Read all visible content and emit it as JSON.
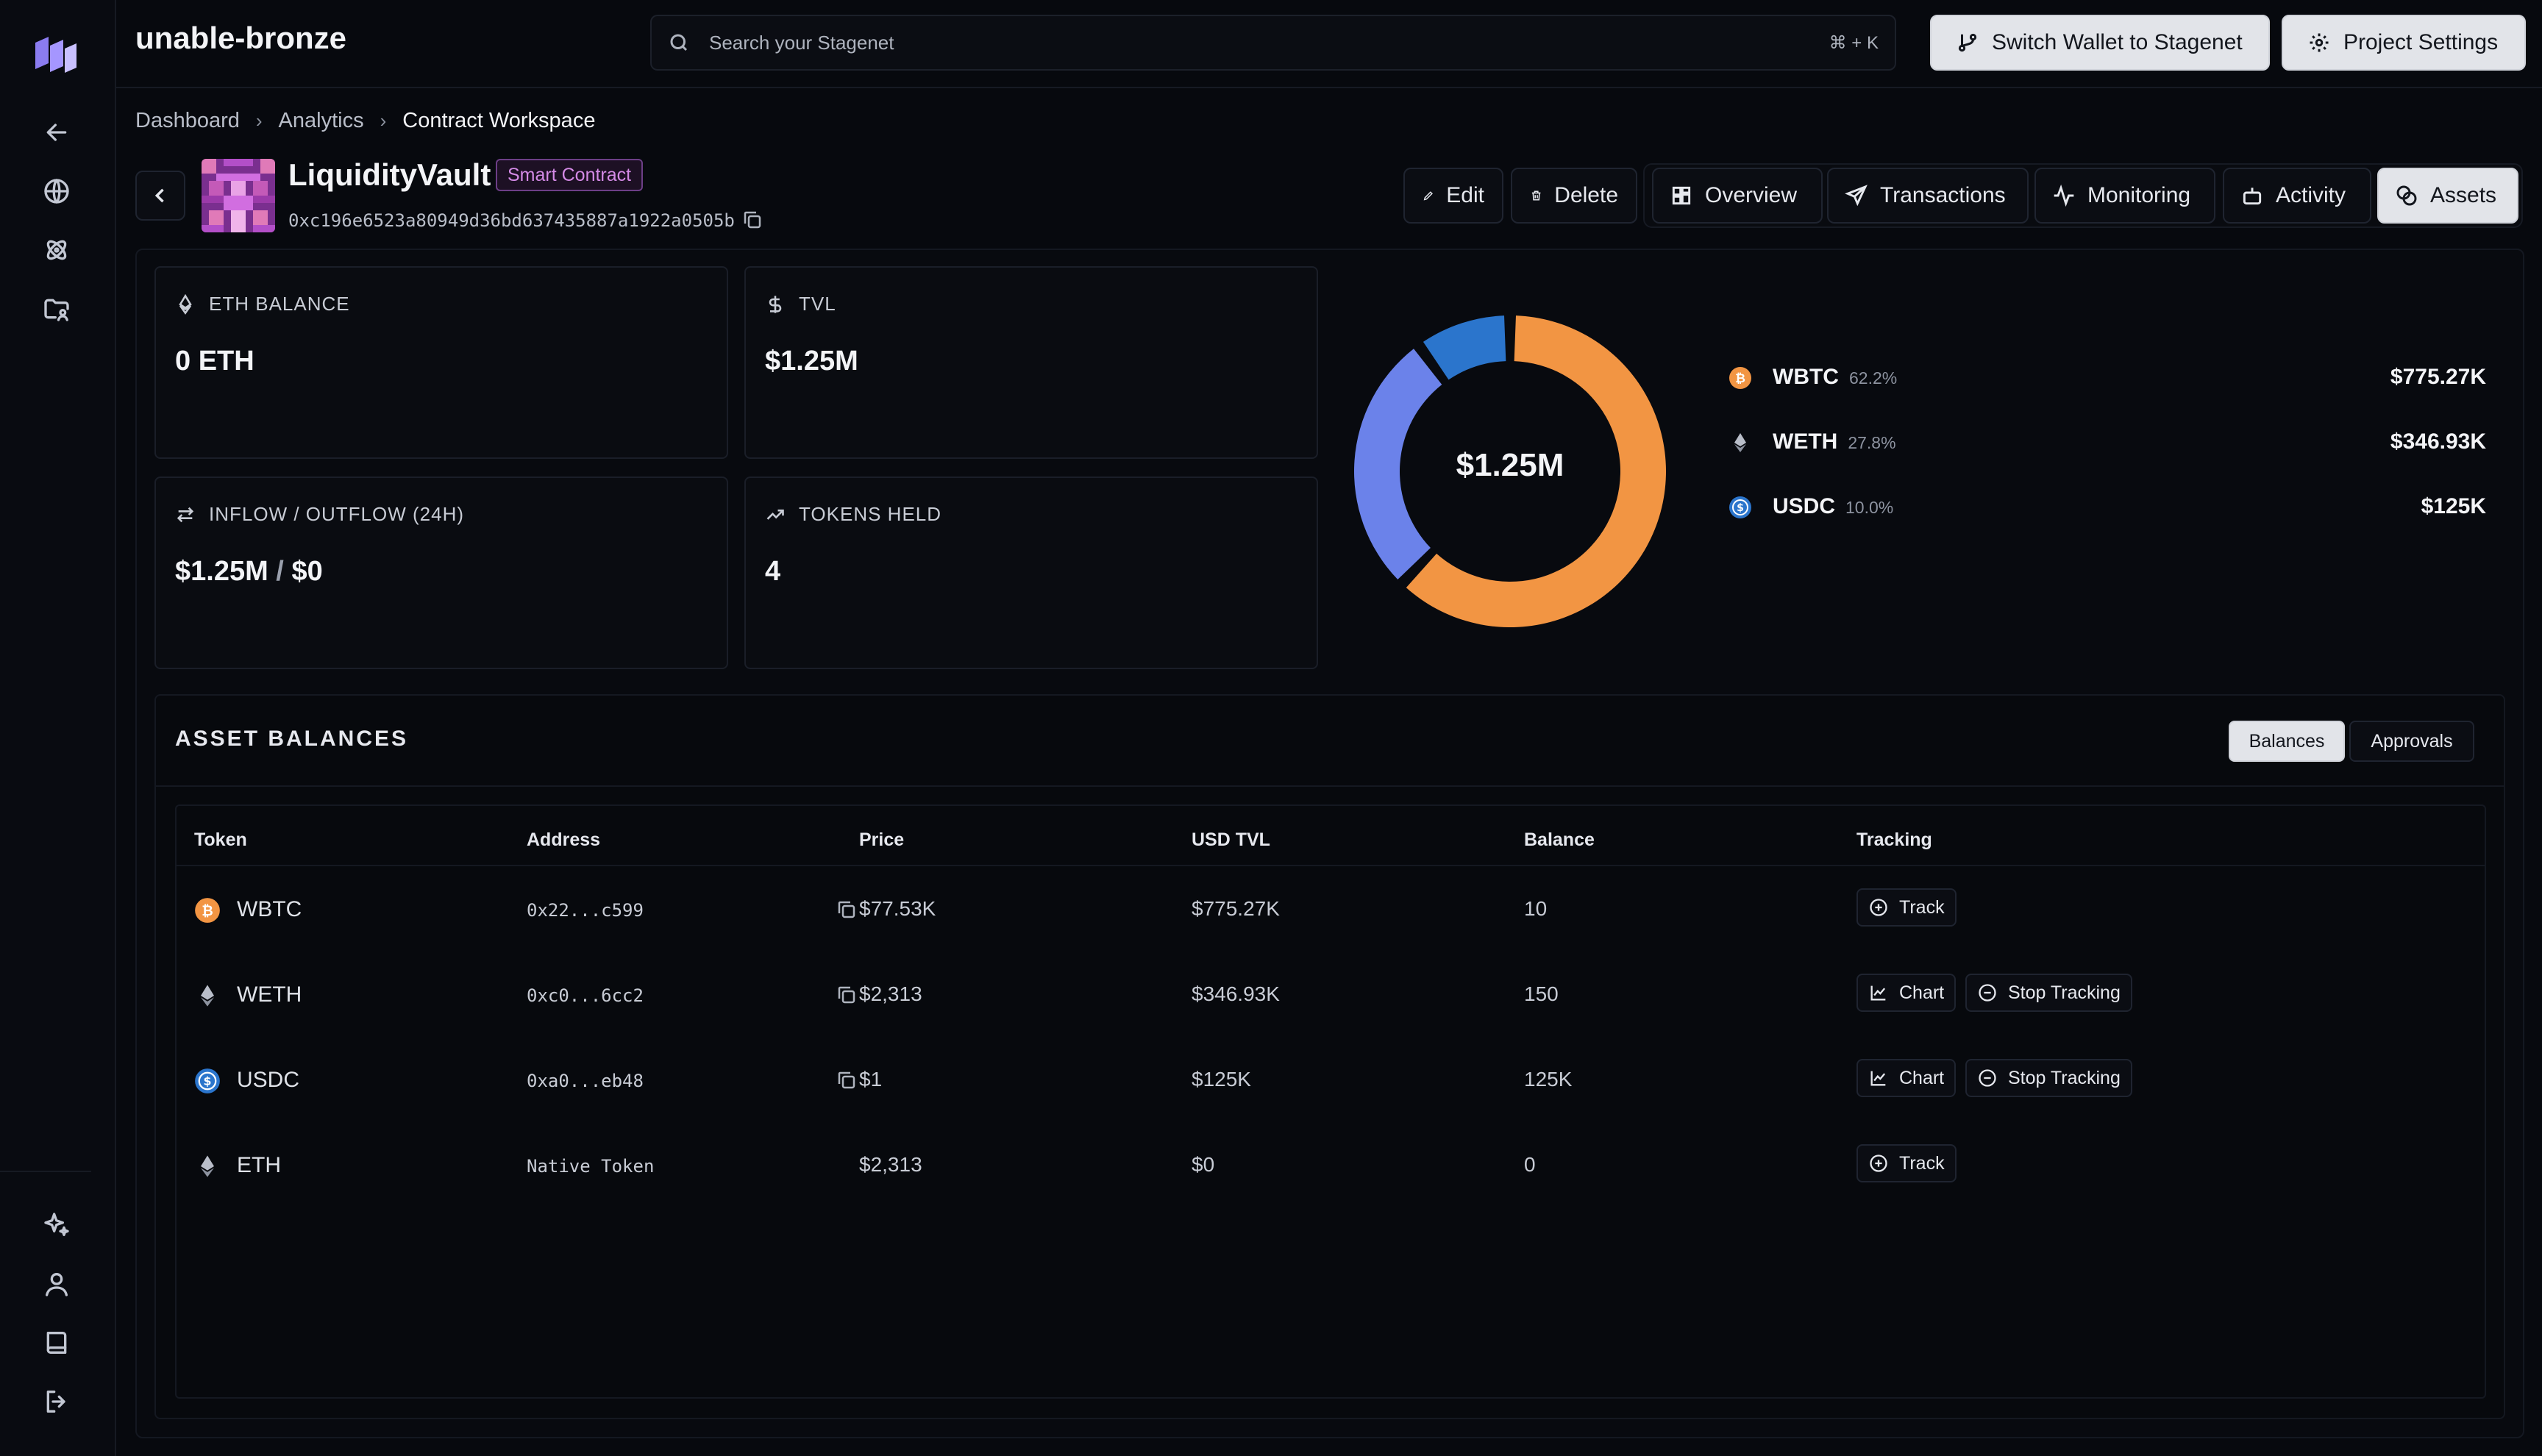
{
  "app": {
    "title": "unable-bronze"
  },
  "search": {
    "placeholder": "Search your Stagenet",
    "shortcut": "⌘ + K"
  },
  "top_buttons": {
    "switch_wallet": "Switch Wallet to Stagenet",
    "project_settings": "Project Settings"
  },
  "breadcrumb": [
    "Dashboard",
    "Analytics",
    "Contract Workspace"
  ],
  "contract": {
    "name": "LiquidityVault",
    "badge": "Smart Contract",
    "address": "0xc196e6523a80949d36bd637435887a1922a0505b"
  },
  "actions": {
    "edit": "Edit",
    "delete": "Delete"
  },
  "tabs": [
    "Overview",
    "Transactions",
    "Monitoring",
    "Activity",
    "Assets"
  ],
  "active_tab": "Assets",
  "stats": {
    "eth_balance": {
      "label": "ETH BALANCE",
      "value": "0 ETH"
    },
    "tvl": {
      "label": "TVL",
      "value": "$1.25M"
    },
    "flow": {
      "label": "INFLOW / OUTFLOW (24H)",
      "inflow": "$1.25M",
      "sep": " / ",
      "outflow": "$0"
    },
    "tokens_held": {
      "label": "TOKENS HELD",
      "value": "4"
    }
  },
  "donut": {
    "center": "$1.25M",
    "colors": {
      "WBTC": "#f29543",
      "WETH": "#6b82ea",
      "USDC": "#2b75cc"
    },
    "legend": [
      {
        "name": "WBTC",
        "pct": "62.2%",
        "value": "$775.27K",
        "fraction": 0.622
      },
      {
        "name": "WETH",
        "pct": "27.8%",
        "value": "$346.93K",
        "fraction": 0.278
      },
      {
        "name": "USDC",
        "pct": "10.0%",
        "value": "$125K",
        "fraction": 0.1
      }
    ]
  },
  "assets": {
    "title": "ASSET BALANCES",
    "segments": {
      "balances": "Balances",
      "approvals": "Approvals"
    },
    "columns": [
      "Token",
      "Address",
      "Price",
      "USD TVL",
      "Balance",
      "Tracking"
    ],
    "rows": [
      {
        "token": "WBTC",
        "address": "0x22...c599",
        "price": "$77.53K",
        "tvl": "$775.27K",
        "balance": "10",
        "track": "Track"
      },
      {
        "token": "WETH",
        "address": "0xc0...6cc2",
        "price": "$2,313",
        "tvl": "$346.93K",
        "balance": "150",
        "chart": "Chart",
        "stop": "Stop Tracking"
      },
      {
        "token": "USDC",
        "address": "0xa0...eb48",
        "price": "$1",
        "tvl": "$125K",
        "balance": "125K",
        "chart": "Chart",
        "stop": "Stop Tracking"
      },
      {
        "token": "ETH",
        "address": "Native Token",
        "price": "$2,313",
        "tvl": "$0",
        "balance": "0",
        "track": "Track"
      }
    ]
  }
}
